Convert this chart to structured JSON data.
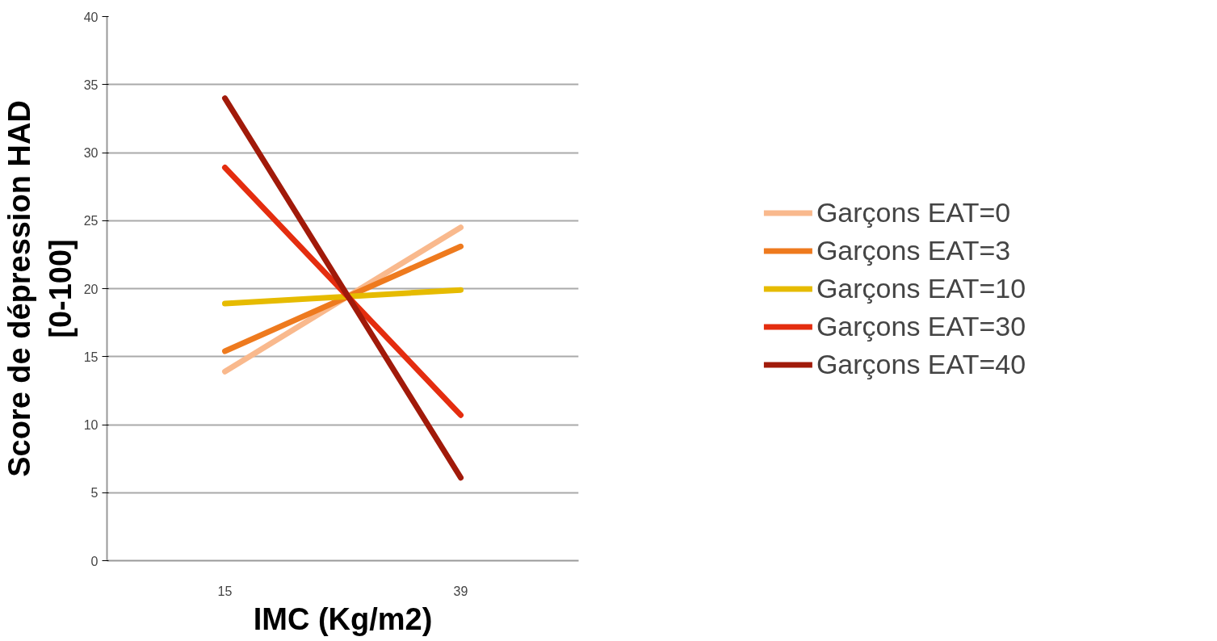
{
  "chart_data": {
    "type": "line",
    "xlabel": "IMC (Kg/m2)",
    "ylabel": "Score de dépression HAD\n[0-100]",
    "categories": [
      "15",
      "39"
    ],
    "series": [
      {
        "name": "Garçons EAT=0",
        "color": "#f9b98d",
        "values": [
          13.9,
          24.5
        ]
      },
      {
        "name": "Garçons EAT=3",
        "color": "#ee7a1e",
        "values": [
          15.4,
          23.1
        ]
      },
      {
        "name": "Garçons EAT=10",
        "color": "#e6bb00",
        "values": [
          18.9,
          19.9
        ]
      },
      {
        "name": "Garçons EAT=30",
        "color": "#e42d0f",
        "values": [
          28.9,
          10.7
        ]
      },
      {
        "name": "Garçons EAT=40",
        "color": "#a11a0a",
        "values": [
          34.0,
          6.1
        ]
      }
    ],
    "ylim": [
      0,
      40
    ],
    "yticks": [
      0,
      5,
      10,
      15,
      20,
      25,
      30,
      35,
      40
    ],
    "grid": "y",
    "legend": "right",
    "marker": "none",
    "line_style": "solid"
  }
}
